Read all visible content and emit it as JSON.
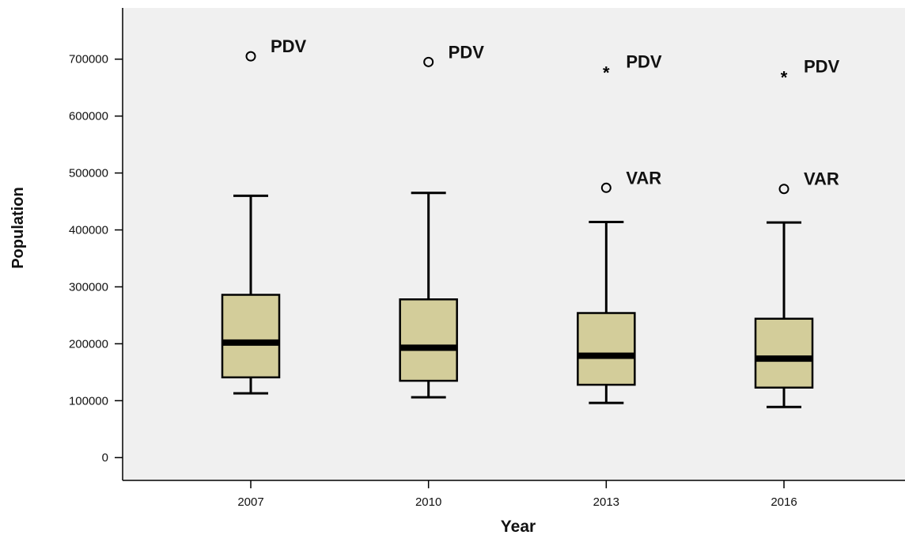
{
  "chart_data": {
    "type": "boxplot",
    "xlabel": "Year",
    "ylabel": "Population",
    "ylim": [
      -40000,
      790000
    ],
    "yticks": [
      0,
      100000,
      200000,
      300000,
      400000,
      500000,
      600000,
      700000
    ],
    "ytick_labels": [
      "0",
      "100000",
      "200000",
      "300000",
      "400000",
      "500000",
      "600000",
      "700000"
    ],
    "grid": false,
    "colors": {
      "plot_background": "#f0f0f0",
      "box_fill": "#d3cd9a",
      "line": "#000000"
    },
    "categories": [
      "2007",
      "2010",
      "2013",
      "2016"
    ],
    "boxes": [
      {
        "category": "2007",
        "whisker_low": 113000,
        "q1": 141000,
        "median": 202000,
        "q3": 286000,
        "whisker_high": 460000,
        "outliers": [
          {
            "value": 705000,
            "marker": "circle",
            "label": "PDV"
          }
        ]
      },
      {
        "category": "2010",
        "whisker_low": 106000,
        "q1": 135000,
        "median": 193000,
        "q3": 278000,
        "whisker_high": 465000,
        "outliers": [
          {
            "value": 695000,
            "marker": "circle",
            "label": "PDV"
          }
        ]
      },
      {
        "category": "2013",
        "whisker_low": 96000,
        "q1": 128000,
        "median": 179000,
        "q3": 254000,
        "whisker_high": 414000,
        "outliers": [
          {
            "value": 678000,
            "marker": "star",
            "label": "PDV"
          },
          {
            "value": 474000,
            "marker": "circle",
            "label": "VAR"
          }
        ]
      },
      {
        "category": "2016",
        "whisker_low": 89000,
        "q1": 123000,
        "median": 174000,
        "q3": 244000,
        "whisker_high": 413000,
        "outliers": [
          {
            "value": 670000,
            "marker": "star",
            "label": "PDV"
          },
          {
            "value": 472000,
            "marker": "circle",
            "label": "VAR"
          }
        ]
      }
    ]
  }
}
